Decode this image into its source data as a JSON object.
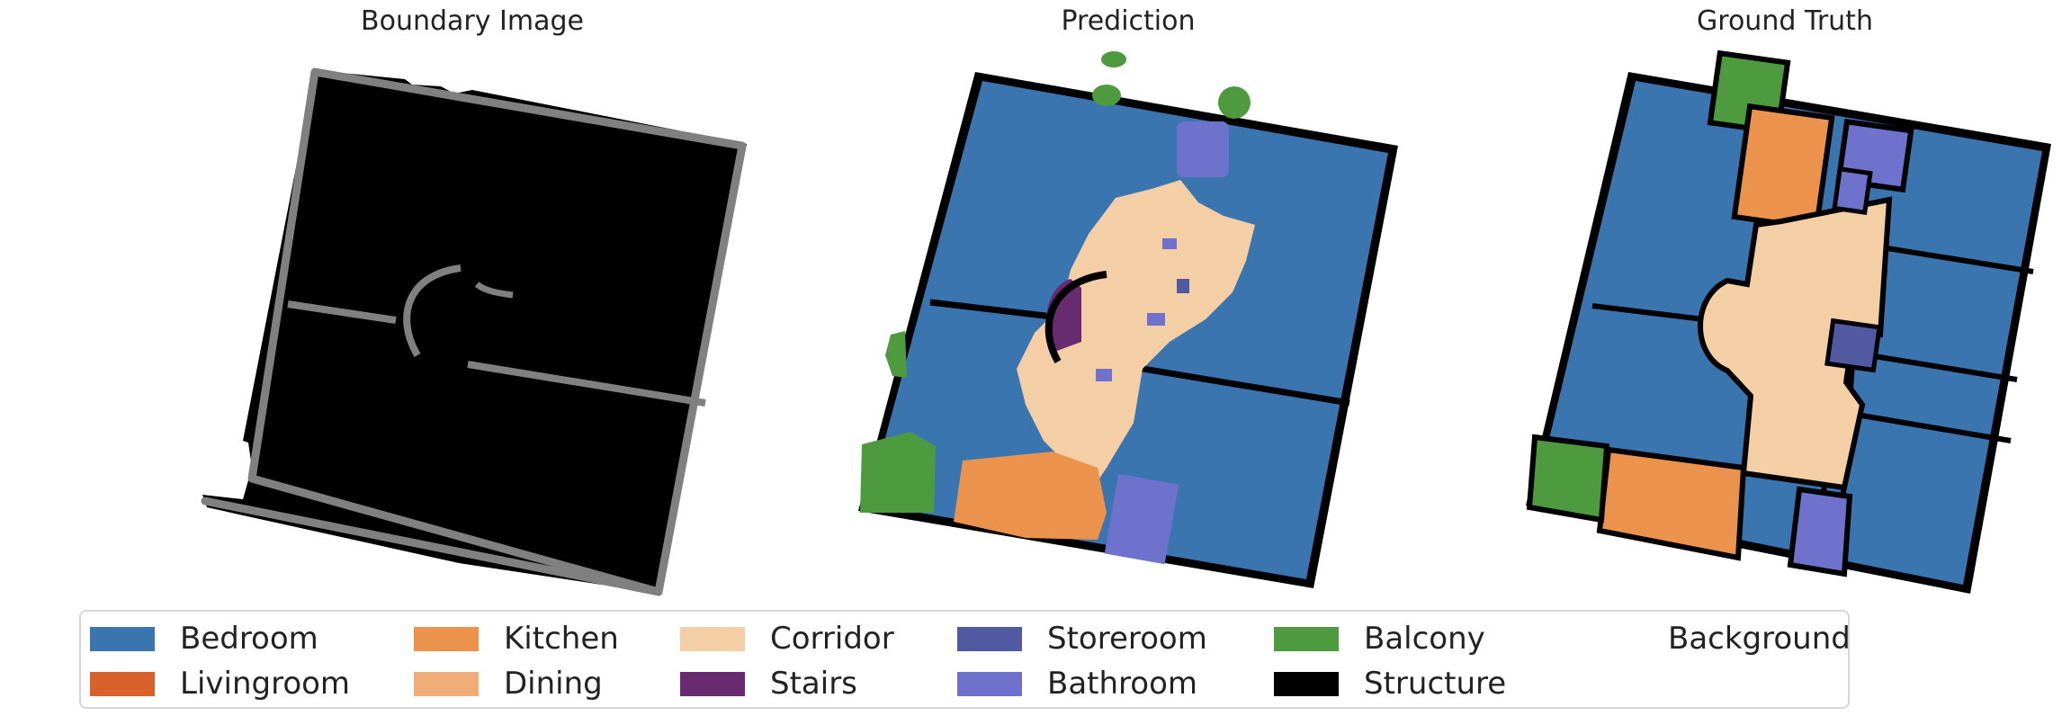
{
  "panels": {
    "boundary_title": "Boundary Image",
    "prediction_title": "Prediction",
    "ground_truth_title": "Ground Truth"
  },
  "colors": {
    "bedroom": "#3a75b0",
    "livingroom": "#d8612c",
    "kitchen": "#eb924c",
    "dining": "#f0ad78",
    "corridor": "#f4cea4",
    "stairs": "#692b70",
    "storeroom": "#5159a0",
    "bathroom": "#6f72cc",
    "balcony": "#4e9a3e",
    "structure": "#000000",
    "wall_gray": "#808080"
  },
  "legend": {
    "items": [
      {
        "label": "Bedroom",
        "color": "#3a75b0"
      },
      {
        "label": "Livingroom",
        "color": "#d8612c"
      },
      {
        "label": "Kitchen",
        "color": "#eb924c"
      },
      {
        "label": "Dining",
        "color": "#f0ad78"
      },
      {
        "label": "Corridor",
        "color": "#f4cea4"
      },
      {
        "label": "Stairs",
        "color": "#692b70"
      },
      {
        "label": "Storeroom",
        "color": "#5159a0"
      },
      {
        "label": "Bathroom",
        "color": "#6f72cc"
      },
      {
        "label": "Balcony",
        "color": "#4e9a3e"
      },
      {
        "label": "Structure",
        "color": "#000000"
      },
      {
        "label": "Background",
        "color": "#ffffff"
      }
    ]
  }
}
